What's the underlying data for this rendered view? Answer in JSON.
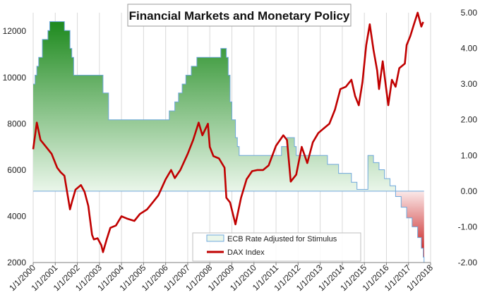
{
  "chart_data": {
    "type": "line",
    "title": "Financial Markets and Monetary Policy",
    "x_tick_labels": [
      "1/1/2000",
      "1/1/2001",
      "1/1/2002",
      "1/1/2003",
      "1/1/2004",
      "1/1/2005",
      "1/1/2006",
      "1/1/2007",
      "1/1/2008",
      "1/1/2009",
      "1/1/2010",
      "1/1/2011",
      "1/1/2012",
      "1/1/2013",
      "1/1/2014",
      "1/1/2015",
      "1/1/2016",
      "1/1/2017",
      "1/1/2018"
    ],
    "x_range": [
      "2000-01-01",
      "2018-01-01"
    ],
    "y_left": {
      "ticks": [
        "2000",
        "4000",
        "6000",
        "8000",
        "10000",
        "12000"
      ],
      "ylim": [
        2000,
        12800
      ]
    },
    "y_right": {
      "ticks": [
        "-2.00",
        "-1.00",
        "0.00",
        "1.00",
        "2.00",
        "3.00",
        "4.00",
        "5.00"
      ],
      "ylim": [
        -2.0,
        5.0
      ]
    },
    "legend": {
      "position": "bottom-center"
    },
    "grid": "vertical",
    "colors": {
      "dax": "#c00000",
      "ecb_pos_top": "#1f8a1f",
      "ecb_pos_bottom": "#e8f5e8",
      "ecb_neg": "#c00000",
      "ecb_line": "#6fa8dc"
    },
    "series": [
      {
        "name": "ECB  Rate Adjusted for Stimulus",
        "axis": "right",
        "kind": "area",
        "x": [
          "2000-01-01",
          "2000-02-01",
          "2000-03-01",
          "2000-04-01",
          "2000-06-01",
          "2000-09-01",
          "2000-10-01",
          "2001-05-01",
          "2001-06-01",
          "2001-08-01",
          "2001-09-01",
          "2001-10-01",
          "2001-11-01",
          "2002-12-01",
          "2003-03-01",
          "2003-06-01",
          "2005-12-01",
          "2006-03-01",
          "2006-06-01",
          "2006-08-01",
          "2006-10-01",
          "2006-12-01",
          "2007-03-01",
          "2007-06-01",
          "2008-07-01",
          "2008-10-01",
          "2008-11-01",
          "2008-12-01",
          "2009-01-01",
          "2009-03-01",
          "2009-04-01",
          "2009-05-01",
          "2011-04-01",
          "2011-07-01",
          "2011-11-01",
          "2011-12-01",
          "2013-05-01",
          "2013-11-01",
          "2014-06-01",
          "2014-09-01",
          "2015-02-01",
          "2015-03-01",
          "2015-06-01",
          "2015-09-01",
          "2015-12-01",
          "2016-03-01",
          "2016-06-01",
          "2016-09-01",
          "2016-12-01",
          "2017-03-01",
          "2017-06-01",
          "2017-08-01",
          "2017-09-01",
          "2017-09-15"
        ],
        "y": [
          3.0,
          3.25,
          3.5,
          3.75,
          4.25,
          4.5,
          4.75,
          4.75,
          4.5,
          4.5,
          4.0,
          3.75,
          3.25,
          3.25,
          2.75,
          2.0,
          2.0,
          2.25,
          2.5,
          2.75,
          3.0,
          3.25,
          3.5,
          3.75,
          4.0,
          3.75,
          3.25,
          2.5,
          2.0,
          1.5,
          1.25,
          1.0,
          1.25,
          1.5,
          1.25,
          1.0,
          0.75,
          0.5,
          0.25,
          0.05,
          0.05,
          1.0,
          0.8,
          0.6,
          0.35,
          0.15,
          -0.15,
          -0.45,
          -0.75,
          -1.0,
          -1.3,
          -1.6,
          -1.85,
          -2.0
        ]
      },
      {
        "name": "DAX Index",
        "axis": "left",
        "kind": "line",
        "x": [
          "2000-01-01",
          "2000-03-01",
          "2000-05-01",
          "2000-08-01",
          "2000-11-01",
          "2001-02-01",
          "2001-04-01",
          "2001-06-01",
          "2001-09-01",
          "2001-10-01",
          "2001-12-01",
          "2002-03-01",
          "2002-05-01",
          "2002-07-01",
          "2002-09-01",
          "2002-10-01",
          "2002-12-01",
          "2003-02-01",
          "2003-03-01",
          "2003-05-01",
          "2003-07-01",
          "2003-10-01",
          "2004-01-01",
          "2004-04-01",
          "2004-08-01",
          "2004-11-01",
          "2005-03-01",
          "2005-06-01",
          "2005-09-01",
          "2006-01-01",
          "2006-04-01",
          "2006-06-01",
          "2006-09-01",
          "2007-01-01",
          "2007-04-01",
          "2007-07-01",
          "2007-09-01",
          "2007-12-01",
          "2008-01-01",
          "2008-03-01",
          "2008-06-01",
          "2008-09-01",
          "2008-10-01",
          "2008-12-01",
          "2009-03-01",
          "2009-06-01",
          "2009-09-01",
          "2009-12-01",
          "2010-03-01",
          "2010-06-01",
          "2010-09-01",
          "2011-01-01",
          "2011-05-01",
          "2011-07-01",
          "2011-09-01",
          "2011-12-01",
          "2012-03-01",
          "2012-06-01",
          "2012-09-01",
          "2012-12-01",
          "2013-03-01",
          "2013-06-01",
          "2013-09-01",
          "2013-12-01",
          "2014-03-01",
          "2014-06-01",
          "2014-08-01",
          "2014-10-01",
          "2014-12-01",
          "2015-02-01",
          "2015-04-01",
          "2015-06-01",
          "2015-08-01",
          "2015-09-01",
          "2015-11-01",
          "2016-02-01",
          "2016-04-01",
          "2016-06-01",
          "2016-08-01",
          "2016-11-01",
          "2016-12-01",
          "2017-02-01",
          "2017-04-01",
          "2017-06-01",
          "2017-08-01",
          "2017-09-01"
        ],
        "y": [
          6900,
          8050,
          7300,
          7000,
          6700,
          6100,
          5900,
          5750,
          4300,
          4600,
          5150,
          5350,
          5050,
          4450,
          3200,
          3000,
          3050,
          2750,
          2450,
          3000,
          3500,
          3600,
          4000,
          3900,
          3800,
          4100,
          4300,
          4600,
          4900,
          5600,
          6000,
          5650,
          6000,
          6700,
          7300,
          8050,
          7500,
          8000,
          7000,
          6600,
          6500,
          6100,
          4800,
          4600,
          3650,
          4800,
          5600,
          5950,
          6000,
          6000,
          6200,
          7050,
          7500,
          7300,
          5500,
          5800,
          7000,
          6300,
          7200,
          7600,
          7800,
          8000,
          8600,
          9500,
          9600,
          9900,
          9200,
          8800,
          9800,
          11400,
          12300,
          11200,
          10300,
          9500,
          10700,
          8800,
          9900,
          9600,
          10400,
          10600,
          11400,
          11800,
          12300,
          12800,
          12200,
          12400
        ]
      }
    ]
  }
}
